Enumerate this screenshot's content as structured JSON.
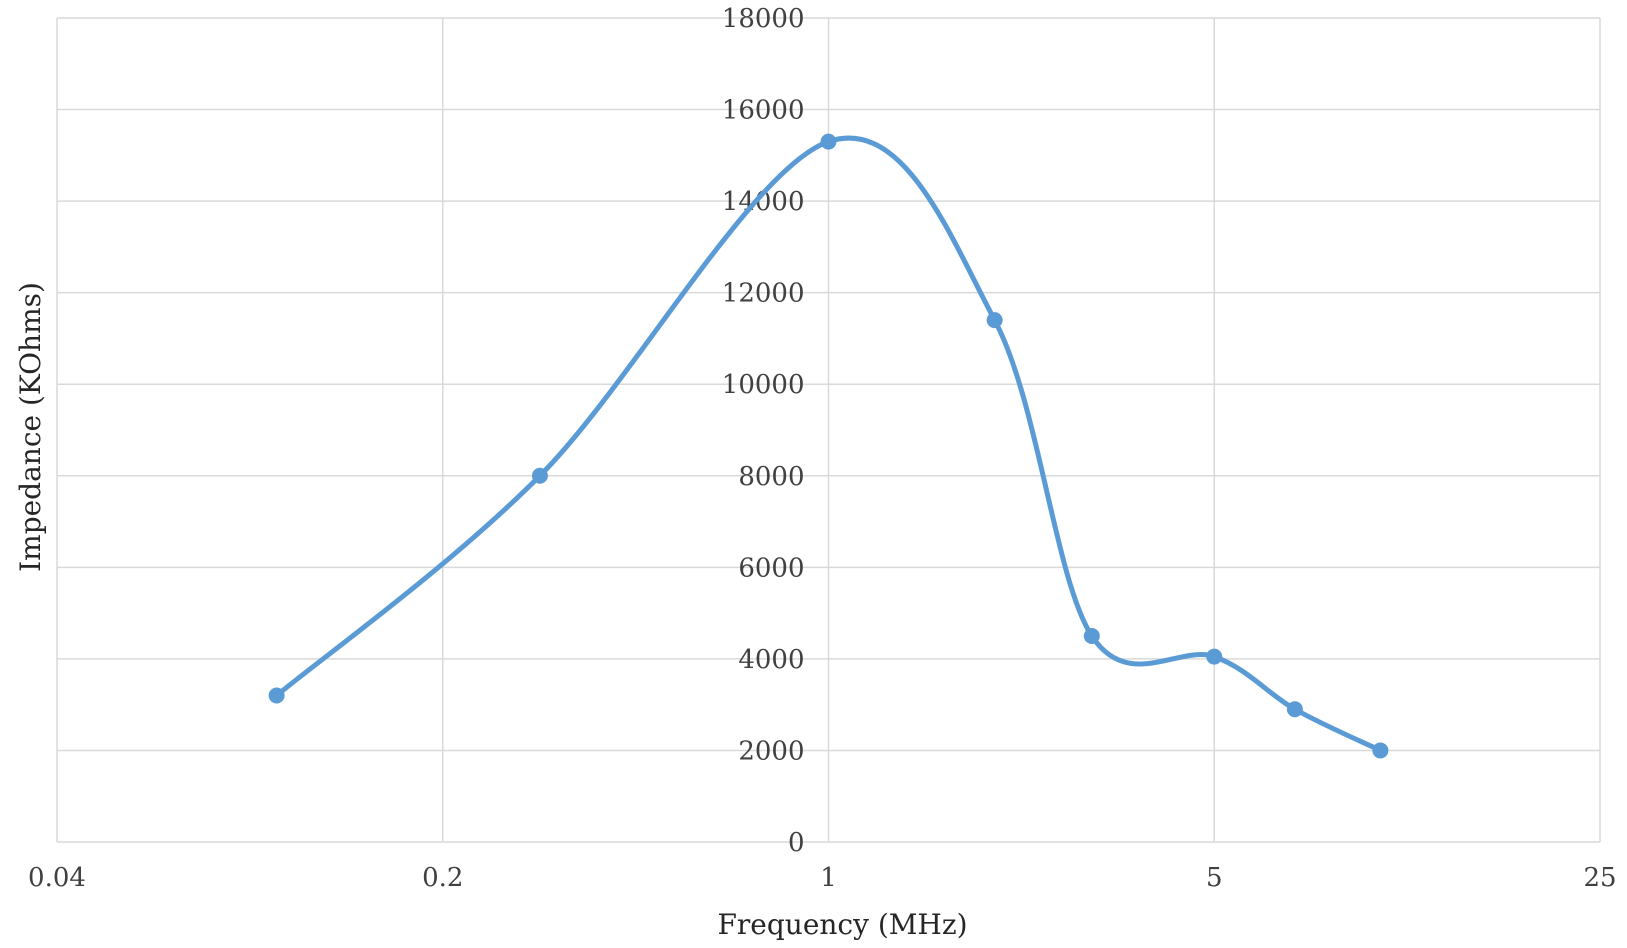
{
  "chart_data": {
    "type": "line",
    "title": "",
    "xlabel": "Frequency (MHz)",
    "ylabel": "Impedance (KOhms)",
    "x_scale": "log5",
    "xlim": [
      0.04,
      25
    ],
    "ylim": [
      0,
      18000
    ],
    "x_ticks": [
      "0.04",
      "0.2",
      "1",
      "5",
      "25"
    ],
    "y_ticks": [
      "0",
      "2000",
      "4000",
      "6000",
      "8000",
      "10000",
      "12000",
      "14000",
      "16000",
      "18000"
    ],
    "grid": true,
    "legend": "none",
    "smooth": true,
    "color": "#5b9bd5",
    "series": [
      {
        "x": [
          0.1,
          0.3,
          1,
          2,
          3,
          5,
          7,
          10
        ],
        "y": [
          3200,
          8000,
          15300,
          11400,
          4500,
          4050,
          2900,
          2000
        ]
      }
    ]
  }
}
